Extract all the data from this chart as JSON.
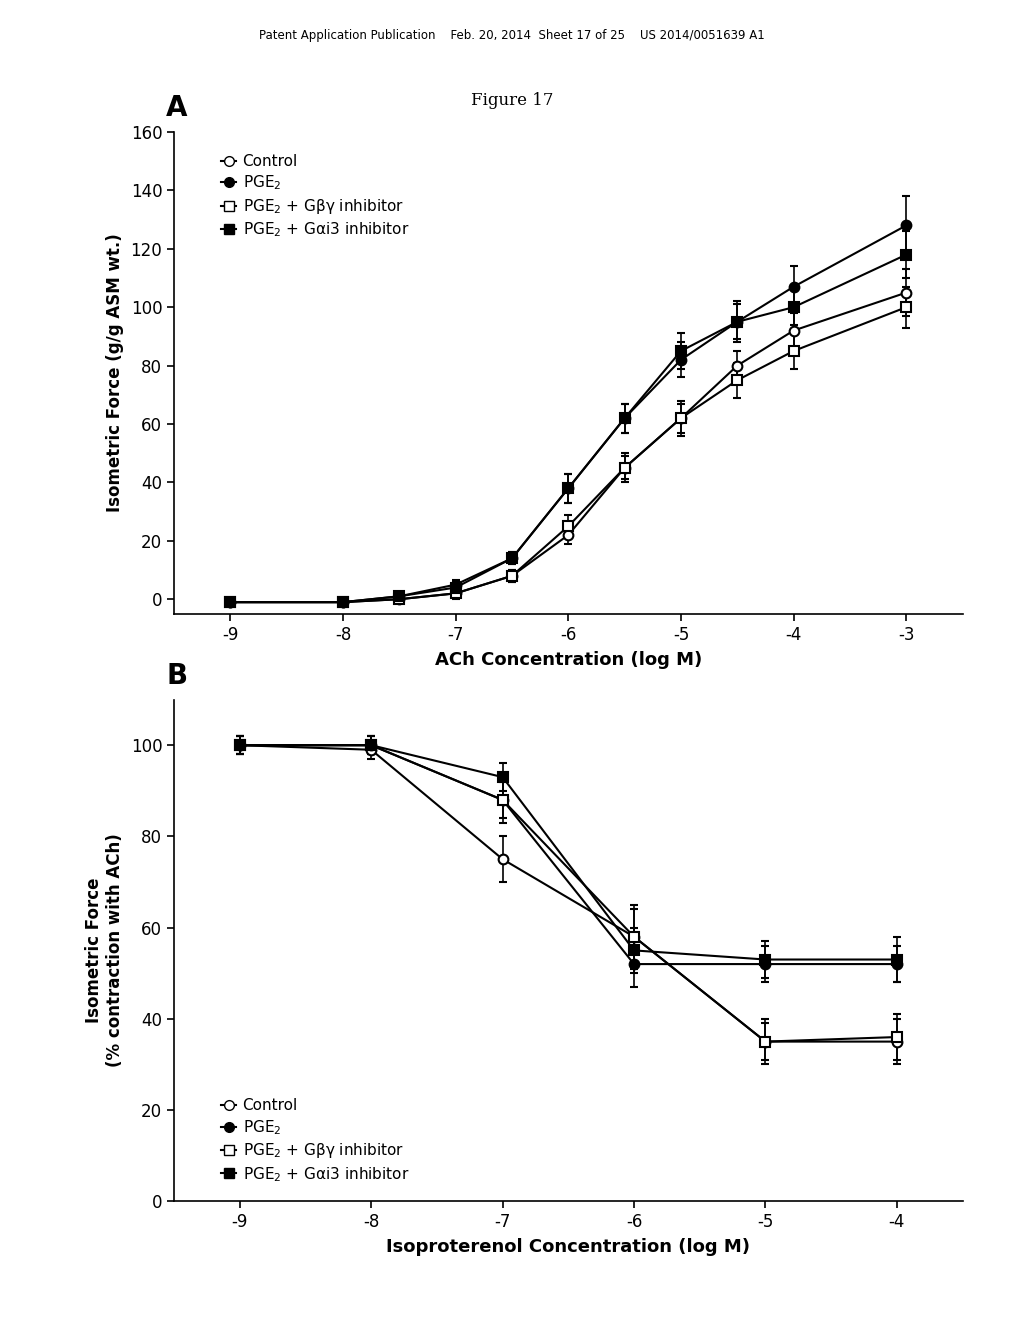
{
  "figure_title": "Figure 17",
  "header_text": "Patent Application Publication    Feb. 20, 2014  Sheet 17 of 25    US 2014/0051639 A1",
  "panel_A": {
    "label": "A",
    "xlabel": "ACh Concentration (log M)",
    "ylabel": "Isometric Force (g/g ASM wt.)",
    "xlim": [
      -9.5,
      -2.5
    ],
    "ylim": [
      -5,
      160
    ],
    "yticks": [
      0,
      20,
      40,
      60,
      80,
      100,
      120,
      140,
      160
    ],
    "xticks": [
      -9,
      -8,
      -7,
      -6,
      -5,
      -4,
      -3
    ],
    "xticklabels": [
      "-9",
      "-8",
      "-7",
      "-6",
      "-5",
      "-4",
      "-3"
    ],
    "control": {
      "x": [
        -9,
        -8,
        -7.5,
        -7,
        -6.5,
        -6,
        -5.5,
        -5,
        -4.5,
        -4,
        -3
      ],
      "y": [
        -1,
        -1,
        0,
        2,
        8,
        22,
        45,
        62,
        80,
        92,
        105
      ],
      "yerr": [
        0.5,
        0.5,
        0.5,
        1,
        2,
        3,
        4,
        5,
        5,
        6,
        8
      ],
      "marker": "o",
      "color": "black",
      "fillstyle": "none",
      "label": "Control"
    },
    "pge2": {
      "x": [
        -9,
        -8,
        -7.5,
        -7,
        -6.5,
        -6,
        -5.5,
        -5,
        -4.5,
        -4,
        -3
      ],
      "y": [
        -1,
        -1,
        1,
        5,
        14,
        38,
        62,
        82,
        95,
        107,
        128
      ],
      "yerr": [
        0.5,
        0.5,
        1,
        1.5,
        2,
        5,
        5,
        6,
        7,
        7,
        10
      ],
      "marker": "o",
      "color": "black",
      "fillstyle": "full",
      "label": "PGE$_2$"
    },
    "gbeta": {
      "x": [
        -9,
        -8,
        -7.5,
        -7,
        -6.5,
        -6,
        -5.5,
        -5,
        -4.5,
        -4,
        -3
      ],
      "y": [
        -1,
        -1,
        0,
        2,
        8,
        25,
        45,
        62,
        75,
        85,
        100
      ],
      "yerr": [
        0.5,
        0.5,
        0.5,
        2,
        2,
        4,
        5,
        6,
        6,
        6,
        7
      ],
      "marker": "s",
      "color": "black",
      "fillstyle": "none",
      "label": "PGE$_2$ + Gβγ inhibitor"
    },
    "galpha": {
      "x": [
        -9,
        -8,
        -7.5,
        -7,
        -6.5,
        -6,
        -5.5,
        -5,
        -4.5,
        -4,
        -3
      ],
      "y": [
        -1,
        -1,
        1,
        4,
        14,
        38,
        62,
        85,
        95,
        100,
        118
      ],
      "yerr": [
        0.5,
        0.5,
        1,
        2,
        2,
        5,
        5,
        6,
        6,
        6,
        8
      ],
      "marker": "s",
      "color": "black",
      "fillstyle": "full",
      "label": "PGE$_2$ + Gαi3 inhibitor"
    }
  },
  "panel_B": {
    "label": "B",
    "xlabel": "Isoproterenol Concentration (log M)",
    "ylabel": "Isometric Force\n(% contraction with ACh)",
    "xlim": [
      -9.5,
      -3.5
    ],
    "ylim": [
      0,
      110
    ],
    "yticks": [
      0,
      20,
      40,
      60,
      80,
      100
    ],
    "xticks": [
      -9,
      -8,
      -7,
      -6,
      -5,
      -4
    ],
    "xticklabels": [
      "-9",
      "-8",
      "-7",
      "-6",
      "-5",
      "-4"
    ],
    "control": {
      "x": [
        -9,
        -8,
        -7,
        -6,
        -5,
        -4
      ],
      "y": [
        100,
        99,
        75,
        58,
        35,
        35
      ],
      "yerr": [
        2,
        2,
        5,
        6,
        5,
        5
      ],
      "marker": "o",
      "color": "black",
      "fillstyle": "none",
      "label": "Control"
    },
    "pge2": {
      "x": [
        -9,
        -8,
        -7,
        -6,
        -5,
        -4
      ],
      "y": [
        100,
        100,
        88,
        52,
        52,
        52
      ],
      "yerr": [
        2,
        2,
        4,
        5,
        4,
        4
      ],
      "marker": "o",
      "color": "black",
      "fillstyle": "full",
      "label": "PGE$_2$"
    },
    "gbeta": {
      "x": [
        -9,
        -8,
        -7,
        -6,
        -5,
        -4
      ],
      "y": [
        100,
        100,
        88,
        58,
        35,
        36
      ],
      "yerr": [
        2,
        2,
        5,
        7,
        4,
        5
      ],
      "marker": "s",
      "color": "black",
      "fillstyle": "none",
      "label": "PGE$_2$ + Gβγ inhibitor"
    },
    "galpha": {
      "x": [
        -9,
        -8,
        -7,
        -6,
        -5,
        -4
      ],
      "y": [
        100,
        100,
        93,
        55,
        53,
        53
      ],
      "yerr": [
        2,
        2,
        3,
        5,
        4,
        5
      ],
      "marker": "s",
      "color": "black",
      "fillstyle": "full",
      "label": "PGE$_2$ + Gαi3 inhibitor"
    }
  }
}
